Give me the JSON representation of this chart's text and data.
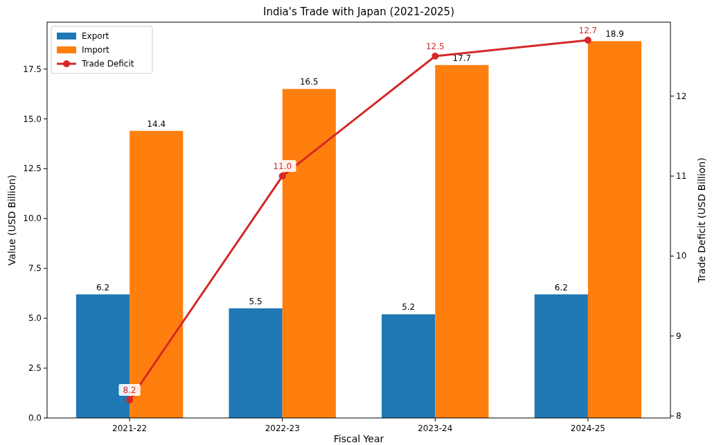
{
  "chart_data": {
    "type": "bar",
    "title": "India's Trade with Japan (2021-2025)",
    "xlabel": "Fiscal Year",
    "ylabel": "Value (USD Billion)",
    "y2label": "Trade Deficit (USD Billion)",
    "categories": [
      "2021-22",
      "2022-23",
      "2023-24",
      "2024-25"
    ],
    "series": [
      {
        "name": "Export",
        "color": "#1f77b4",
        "values": [
          6.2,
          5.5,
          5.2,
          6.2
        ],
        "value_labels": [
          "6.2",
          "5.5",
          "5.2",
          "6.2"
        ]
      },
      {
        "name": "Import",
        "color": "#ff7f0e",
        "values": [
          14.4,
          16.5,
          17.7,
          18.9
        ],
        "value_labels": [
          "14.4",
          "16.5",
          "17.7",
          "18.9"
        ]
      },
      {
        "name": "Trade Deficit",
        "type": "line",
        "axis": "y2",
        "color": "#d62728",
        "values": [
          8.2,
          11.0,
          12.5,
          12.7
        ],
        "value_labels": [
          "8.2",
          "11.0",
          "12.5",
          "12.7"
        ],
        "marker": "circle",
        "line_style": "solid"
      }
    ],
    "ylim": [
      0,
      19.85
    ],
    "yticks": [
      {
        "value": 0,
        "label": "0.0"
      },
      {
        "value": 2.5,
        "label": "2.5"
      },
      {
        "value": 5,
        "label": "5.0"
      },
      {
        "value": 7.5,
        "label": "7.5"
      },
      {
        "value": 10,
        "label": "10.0"
      },
      {
        "value": 12.5,
        "label": "12.5"
      },
      {
        "value": 15,
        "label": "15.0"
      },
      {
        "value": 17.5,
        "label": "17.5"
      }
    ],
    "y2lim": [
      7.975,
      12.925
    ],
    "y2ticks": [
      8,
      9,
      10,
      11,
      12
    ],
    "legend": "top left",
    "grid": false
  }
}
